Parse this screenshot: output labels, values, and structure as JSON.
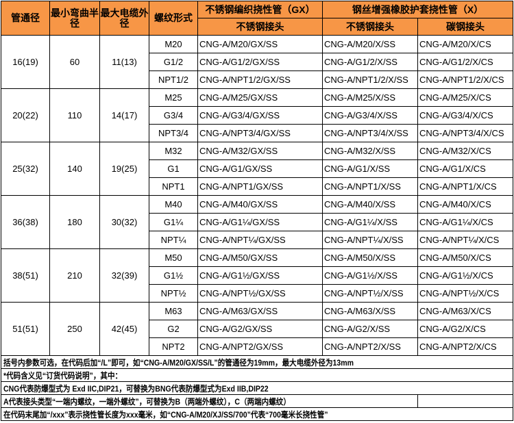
{
  "colors": {
    "header_bg": "#F79646"
  },
  "header": {
    "c1": "管通径",
    "c2": "最小弯曲半径",
    "c3": "最大电缆外径",
    "c4": "螺纹形式",
    "gx": "不锈钢编织挠性管（GX）",
    "x": "钢丝增强橡胶护套挠性管（X）",
    "gx_ss": "不锈钢接头",
    "x_ss": "不锈钢接头",
    "x_cs": "碳钢接头"
  },
  "groups": [
    {
      "dia": "16(19)",
      "bend": "60",
      "cable": "11(13)",
      "rows": [
        [
          "M20",
          "CNG-A/M20/GX/SS",
          "CNG-A/M20/X/SS",
          "CNG-A/M20/X/CS"
        ],
        [
          "G1/2",
          "CNG-A/G1/2/GX/SS",
          "CNG-A/G1/2/X/SS",
          "CNG-A/G1/2/X/CS"
        ],
        [
          "NPT1/2",
          "CNG-A/NPT1/2/GX/SS",
          "CNG-A/NPT1/2/X/SS",
          "CNG-A/NPT1/2/X/CS"
        ]
      ]
    },
    {
      "dia": "20(22)",
      "bend": "110",
      "cable": "14(17)",
      "rows": [
        [
          "M25",
          "CNG-A/M25/GX/SS",
          "CNG-A/M25/X/SS",
          "CNG-A/M25/X/CS"
        ],
        [
          "G3/4",
          "CNG-A/G3/4/GX/SS",
          "CNG-A/G3/4/X/SS",
          "CNG-A/G3/4/X/CS"
        ],
        [
          "NPT3/4",
          "CNG-A/NPT3/4/GX/SS",
          "CNG-A/NPT3/4/X/SS",
          "CNG-A/NPT3/4/X/CS"
        ]
      ]
    },
    {
      "dia": "25(32)",
      "bend": "140",
      "cable": "19(25)",
      "rows": [
        [
          "M32",
          "CNG-A/M32/GX/SS",
          "CNG-A/M32/X/SS",
          "CNG-A/M32/X/CS"
        ],
        [
          "G1",
          "CNG-A/G1/GX/SS",
          "CNG-A/G1/X/SS",
          "CNG-A/G1/X/CS"
        ],
        [
          "NPT1",
          "CNG-A/NPT1/GX/SS",
          "CNG-A/NPT1/X/SS",
          "CNG-A/NPT1/X/CS"
        ]
      ]
    },
    {
      "dia": "36(38)",
      "bend": "180",
      "cable": "30(32)",
      "rows": [
        [
          "M40",
          "CNG-A/M40/GX/SS",
          "CNG-A/M40/X/SS",
          "CNG-A/M40/X/CS"
        ],
        [
          "G1¼",
          "CNG-A/G1¼/GX/SS",
          "CNG-A/G1¼/X/SS",
          "CNG-A/G1¼/X/CS"
        ],
        [
          "NPT¼",
          "CNG-A/NPT¼/GX/SS",
          "CNG-A/NPT¼/X/SS",
          "CNG-A/NPT¼/X/CS"
        ]
      ]
    },
    {
      "dia": "38(51)",
      "bend": "210",
      "cable": "32(39)",
      "rows": [
        [
          "M50",
          "CNG-A/M50/GX/SS",
          "CNG-A/M50/X/SS",
          "CNG-A/M50/X/CS"
        ],
        [
          "G1½",
          "CNG-A/G1½/GX/SS",
          "CNG-A/G1½/X/SS",
          "CNG-A/G1½/X/CS"
        ],
        [
          "NPT½",
          "CNG-A/NPT½/GX/SS",
          "CNG-A/NPT½/X/SS",
          "CNG-A/NPT½/X/CS"
        ]
      ]
    },
    {
      "dia": "51(51)",
      "bend": "250",
      "cable": "42(45)",
      "rows": [
        [
          "M63",
          "CNG-A/M63/GX/SS",
          "CNG-A/M63/X/SS",
          "CNG-A/M63/X/CS"
        ],
        [
          "G2",
          "CNG-A/G2/GX/SS",
          "CNG-A/G2/X/SS",
          "CNG-A/G2/X/CS"
        ],
        [
          "NPT2",
          "CNG-A/NPT2/GX/SS",
          "CNG-A/NPT2/X/SS",
          "CNG-A/NPT2/X/CS"
        ]
      ]
    }
  ],
  "notes": [
    "括号内参数可选，在代码后加“/L”即可，如“CNG-A/M20/GX/SS/L”的管通径为19mm，最大电缆外径为13mm",
    "*代码含义见“订货代码说明”，其中：",
    "CNG代表防爆型式为 Exd IIC,DIP21，可替换为BNG代表防爆型式为Exd IIB,DIP22",
    "A代表接头类型“一端内螺纹，一端外螺纹”，可替换为B（两端外螺纹），C（两端内螺纹）",
    "在代码末尾加“/xxx”表示挠性管长度为xxx毫米，如“CNG-A/M20/XJ/SS/700”代表“700毫米长挠性管”"
  ]
}
